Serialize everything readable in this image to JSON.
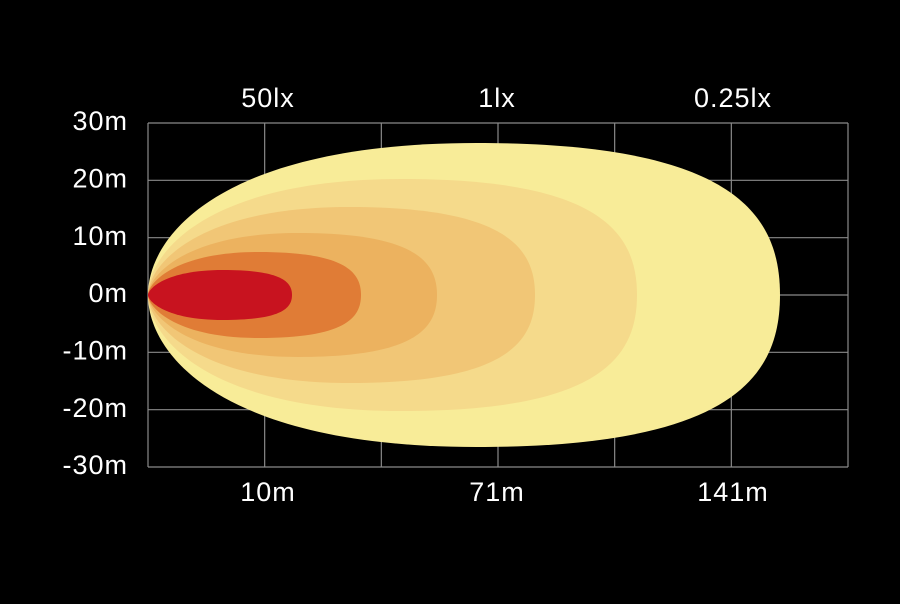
{
  "y_axis": {
    "labels": [
      "30m",
      "20m",
      "10m",
      "0m",
      "-10m",
      "-20m",
      "-30m"
    ]
  },
  "x_axis": {
    "labels": [
      "10m",
      "71m",
      "141m"
    ]
  },
  "lux_labels": [
    "50lx",
    "1lx",
    "0.25lx"
  ]
}
